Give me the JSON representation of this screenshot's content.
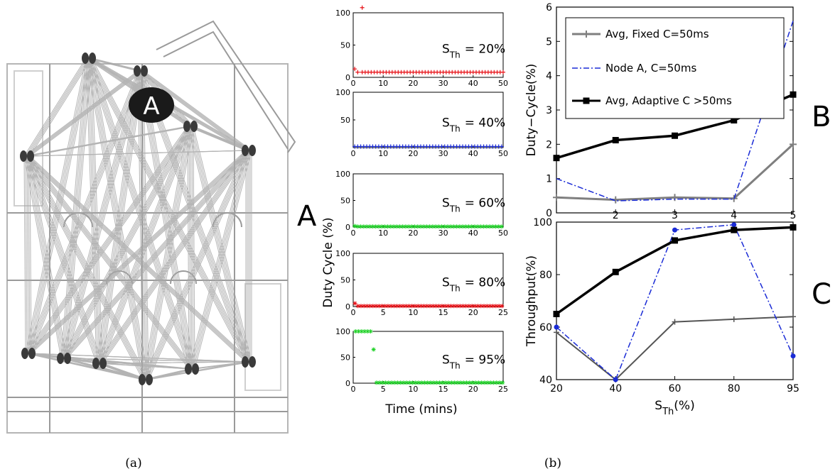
{
  "captions": {
    "left": "(a)",
    "right": "(b)"
  },
  "map": {
    "node_label": "A"
  },
  "panel_letters": {
    "a": "A",
    "b": "B",
    "c": "C"
  },
  "duty_panels": {
    "ylabel": "Duty Cycle (%)",
    "xlabel": "Time (mins)",
    "annotation_prefix": "S",
    "annotation_sub": "Th"
  },
  "colors": {
    "red": "#e8141a",
    "blue": "#1a2bd6",
    "green": "#22d22a",
    "gray": "#7f7f7f",
    "black": "#000000",
    "dark_gray": "#555555"
  },
  "chart_data": [
    {
      "type": "scatter",
      "panel": "duty-20",
      "annotation": "= 20%",
      "color": "#e8141a",
      "marker": "+",
      "xlim": [
        0,
        50
      ],
      "ylim": [
        0,
        100
      ],
      "xticks": [
        0,
        10,
        20,
        30,
        40,
        50
      ],
      "yticks": [
        0,
        50,
        100
      ],
      "points": [
        [
          3,
          108
        ],
        [
          0.5,
          13
        ],
        [
          1.5,
          8
        ],
        [
          3,
          8
        ],
        [
          4,
          8
        ],
        [
          5,
          8
        ],
        [
          6,
          8
        ],
        [
          7,
          8
        ],
        [
          8,
          8
        ],
        [
          9,
          8
        ],
        [
          10,
          8
        ],
        [
          11,
          8
        ],
        [
          12,
          8
        ],
        [
          13,
          8
        ],
        [
          14,
          8
        ],
        [
          15,
          8
        ],
        [
          16,
          8
        ],
        [
          17,
          8
        ],
        [
          18,
          8
        ],
        [
          19,
          8
        ],
        [
          20,
          8
        ],
        [
          21,
          8
        ],
        [
          22,
          8
        ],
        [
          23,
          8
        ],
        [
          24,
          8
        ],
        [
          25,
          8
        ],
        [
          26,
          8
        ],
        [
          27,
          8
        ],
        [
          28,
          8
        ],
        [
          29,
          8
        ],
        [
          30,
          8
        ],
        [
          31,
          8
        ],
        [
          32,
          8
        ],
        [
          33,
          8
        ],
        [
          34,
          8
        ],
        [
          35,
          8
        ],
        [
          36,
          8
        ],
        [
          37,
          8
        ],
        [
          38,
          8
        ],
        [
          39,
          8
        ],
        [
          40,
          8
        ],
        [
          41,
          8
        ],
        [
          42,
          8
        ],
        [
          43,
          8
        ],
        [
          44,
          8
        ],
        [
          45,
          8
        ],
        [
          46,
          8
        ],
        [
          47,
          8
        ],
        [
          48,
          8
        ],
        [
          49,
          8
        ],
        [
          50,
          8
        ]
      ]
    },
    {
      "type": "scatter",
      "panel": "duty-40",
      "annotation": "= 40%",
      "color": "#1a2bd6",
      "marker": "+",
      "xlim": [
        0,
        50
      ],
      "ylim": [
        0,
        100
      ],
      "xticks": [
        0,
        10,
        20,
        30,
        40,
        50
      ],
      "yticks": [
        50,
        100
      ],
      "points": [
        [
          0.5,
          2
        ],
        [
          1.5,
          2
        ],
        [
          2.5,
          2
        ],
        [
          3.5,
          2
        ],
        [
          4.5,
          2
        ],
        [
          5.5,
          2
        ],
        [
          6.5,
          2
        ],
        [
          7.5,
          2
        ],
        [
          8.5,
          2
        ],
        [
          9.5,
          2
        ],
        [
          10.5,
          2
        ],
        [
          11.5,
          2
        ],
        [
          12.5,
          2
        ],
        [
          13.5,
          2
        ],
        [
          14.5,
          2
        ],
        [
          15.5,
          2
        ],
        [
          16.5,
          2
        ],
        [
          17.5,
          2
        ],
        [
          18.5,
          2
        ],
        [
          19.5,
          2
        ],
        [
          20.5,
          2
        ],
        [
          21.5,
          2
        ],
        [
          22.5,
          2
        ],
        [
          23.5,
          2
        ],
        [
          24.5,
          2
        ],
        [
          25.5,
          2
        ],
        [
          26.5,
          2
        ],
        [
          27.5,
          2
        ],
        [
          28.5,
          2
        ],
        [
          29.5,
          2
        ],
        [
          30.5,
          2
        ],
        [
          31.5,
          2
        ],
        [
          32.5,
          2
        ],
        [
          33.5,
          2
        ],
        [
          34.5,
          2
        ],
        [
          35.5,
          2
        ],
        [
          36.5,
          2
        ],
        [
          37.5,
          2
        ],
        [
          38.5,
          2
        ],
        [
          39.5,
          2
        ],
        [
          40.5,
          2
        ],
        [
          41.5,
          2
        ],
        [
          42.5,
          2
        ],
        [
          43.5,
          2
        ],
        [
          44.5,
          2
        ],
        [
          45.5,
          2
        ],
        [
          46.5,
          2
        ],
        [
          47.5,
          2
        ],
        [
          48.5,
          2
        ],
        [
          49.5,
          2
        ]
      ]
    },
    {
      "type": "scatter",
      "panel": "duty-60",
      "annotation": "= 60%",
      "color": "#22d22a",
      "marker": "*",
      "xlim": [
        0,
        50
      ],
      "ylim": [
        0,
        100
      ],
      "xticks": [
        0,
        10,
        20,
        30,
        40,
        50
      ],
      "yticks": [
        0,
        50,
        100
      ],
      "points": [
        [
          0.5,
          2
        ],
        [
          1.5,
          1
        ],
        [
          2.5,
          1
        ],
        [
          3.5,
          1
        ],
        [
          4.5,
          1
        ],
        [
          5.5,
          1
        ],
        [
          6.5,
          1
        ],
        [
          7.5,
          1
        ],
        [
          8.5,
          1
        ],
        [
          9.5,
          1
        ],
        [
          10.5,
          1
        ],
        [
          11.5,
          1
        ],
        [
          12.5,
          1
        ],
        [
          13.5,
          1
        ],
        [
          14.5,
          1
        ],
        [
          15.5,
          1
        ],
        [
          16.5,
          1
        ],
        [
          17.5,
          1
        ],
        [
          18.5,
          1
        ],
        [
          19.5,
          1
        ],
        [
          20.5,
          1
        ],
        [
          21.5,
          1
        ],
        [
          22.5,
          1
        ],
        [
          23.5,
          1
        ],
        [
          24.5,
          1
        ],
        [
          25.5,
          1
        ],
        [
          26.5,
          1
        ],
        [
          27.5,
          1
        ],
        [
          28.5,
          1
        ],
        [
          29.5,
          1
        ],
        [
          30.5,
          1
        ],
        [
          31.5,
          1
        ],
        [
          32.5,
          1
        ],
        [
          33.5,
          1
        ],
        [
          34.5,
          1
        ],
        [
          35.5,
          1
        ],
        [
          36.5,
          1
        ],
        [
          37.5,
          1
        ],
        [
          38.5,
          1
        ],
        [
          39.5,
          1
        ],
        [
          40.5,
          1
        ],
        [
          41.5,
          1
        ],
        [
          42.5,
          1
        ],
        [
          43.5,
          1
        ],
        [
          44.5,
          1
        ],
        [
          45.5,
          1
        ],
        [
          46.5,
          1
        ],
        [
          47.5,
          1
        ],
        [
          48.5,
          1
        ],
        [
          49.5,
          1
        ]
      ]
    },
    {
      "type": "scatter",
      "panel": "duty-80",
      "annotation": "= 80%",
      "color": "#e8141a",
      "marker": "*",
      "xlim": [
        0,
        25
      ],
      "ylim": [
        0,
        100
      ],
      "xticks": [
        0,
        5,
        10,
        15,
        20,
        25
      ],
      "yticks": [
        0,
        50,
        100
      ],
      "points": [
        [
          0.3,
          6
        ],
        [
          0.8,
          1
        ],
        [
          1.3,
          1
        ],
        [
          1.8,
          1
        ],
        [
          2.3,
          1
        ],
        [
          2.8,
          1
        ],
        [
          3.3,
          1
        ],
        [
          3.8,
          1
        ],
        [
          4.3,
          1
        ],
        [
          4.8,
          1
        ],
        [
          5.3,
          1
        ],
        [
          5.8,
          1
        ],
        [
          6.3,
          1
        ],
        [
          6.8,
          1
        ],
        [
          7.3,
          1
        ],
        [
          7.8,
          1
        ],
        [
          8.3,
          1
        ],
        [
          8.8,
          1
        ],
        [
          9.3,
          1
        ],
        [
          9.8,
          1
        ],
        [
          10.3,
          1
        ],
        [
          10.8,
          1
        ],
        [
          11.3,
          1
        ],
        [
          11.8,
          1
        ],
        [
          12.3,
          1
        ],
        [
          12.8,
          1
        ],
        [
          13.3,
          1
        ],
        [
          13.8,
          1
        ],
        [
          14.3,
          1
        ],
        [
          14.8,
          1
        ],
        [
          15.3,
          1
        ],
        [
          15.8,
          1
        ],
        [
          16.3,
          1
        ],
        [
          16.8,
          1
        ],
        [
          17.3,
          1
        ],
        [
          17.8,
          1
        ],
        [
          18.3,
          1
        ],
        [
          18.8,
          1
        ],
        [
          19.3,
          1
        ],
        [
          19.8,
          1
        ],
        [
          20.3,
          1
        ],
        [
          20.8,
          1
        ],
        [
          21.3,
          1
        ],
        [
          21.8,
          1
        ],
        [
          22.3,
          1
        ],
        [
          22.8,
          1
        ],
        [
          23.3,
          1
        ],
        [
          23.8,
          1
        ],
        [
          24.3,
          1
        ],
        [
          24.8,
          1
        ]
      ]
    },
    {
      "type": "scatter",
      "panel": "duty-95",
      "annotation": "= 95%",
      "color": "#22d22a",
      "marker": "*",
      "xlim": [
        0,
        25
      ],
      "ylim": [
        0,
        100
      ],
      "xticks": [
        0,
        5,
        10,
        15,
        20,
        25
      ],
      "yticks": [
        0,
        50,
        100
      ],
      "points": [
        [
          0.4,
          100
        ],
        [
          0.9,
          100
        ],
        [
          1.4,
          100
        ],
        [
          1.9,
          100
        ],
        [
          2.4,
          100
        ],
        [
          2.9,
          100
        ],
        [
          3.4,
          65
        ],
        [
          3.9,
          1
        ],
        [
          4.4,
          1
        ],
        [
          4.9,
          1
        ],
        [
          5.4,
          1
        ],
        [
          5.9,
          1
        ],
        [
          6.4,
          1
        ],
        [
          6.9,
          1
        ],
        [
          7.4,
          1
        ],
        [
          7.9,
          1
        ],
        [
          8.4,
          1
        ],
        [
          8.9,
          1
        ],
        [
          9.4,
          1
        ],
        [
          9.9,
          1
        ],
        [
          10.4,
          1
        ],
        [
          10.9,
          1
        ],
        [
          11.4,
          1
        ],
        [
          11.9,
          1
        ],
        [
          12.4,
          1
        ],
        [
          12.9,
          1
        ],
        [
          13.4,
          1
        ],
        [
          13.9,
          1
        ],
        [
          14.4,
          1
        ],
        [
          14.9,
          1
        ],
        [
          15.4,
          1
        ],
        [
          15.9,
          1
        ],
        [
          16.4,
          1
        ],
        [
          16.9,
          1
        ],
        [
          17.4,
          1
        ],
        [
          17.9,
          1
        ],
        [
          18.4,
          1
        ],
        [
          18.9,
          1
        ],
        [
          19.4,
          1
        ],
        [
          19.9,
          1
        ],
        [
          20.4,
          1
        ],
        [
          20.9,
          1
        ],
        [
          21.4,
          1
        ],
        [
          21.9,
          1
        ],
        [
          22.4,
          1
        ],
        [
          22.9,
          1
        ],
        [
          23.4,
          1
        ],
        [
          23.9,
          1
        ],
        [
          24.4,
          1
        ],
        [
          24.9,
          1
        ]
      ]
    },
    {
      "type": "line",
      "panel": "B",
      "ylabel": "Duty−Cycle(%)",
      "x_positions": [
        1,
        2,
        3,
        4,
        5
      ],
      "xlim": [
        1,
        5
      ],
      "ylim": [
        0,
        6
      ],
      "yticks": [
        0,
        1,
        2,
        3,
        4,
        5,
        6
      ],
      "xtick_labels": [
        "",
        "2",
        "3",
        "4",
        "5"
      ],
      "series": [
        {
          "name": "Avg, Fixed C=50ms",
          "color": "#7f7f7f",
          "style": "solid",
          "marker": "+",
          "values": [
            0.45,
            0.38,
            0.45,
            0.42,
            2.0
          ]
        },
        {
          "name": "Node A, C=50ms",
          "color": "#1a2bd6",
          "style": "dashdot",
          "marker": "none",
          "values": [
            1.0,
            0.35,
            0.4,
            0.4,
            5.6
          ]
        },
        {
          "name": "Avg, Adaptive C >50ms",
          "color": "#000000",
          "style": "solid",
          "marker": "square",
          "values": [
            1.6,
            2.12,
            2.25,
            2.7,
            3.45
          ]
        }
      ]
    },
    {
      "type": "line",
      "panel": "C",
      "ylabel": "Throughput(%)",
      "xlabel": "S",
      "xlabel_sub": "Th",
      "xlabel_suffix": "(%)",
      "categories": [
        "20",
        "40",
        "60",
        "80",
        "95"
      ],
      "ylim": [
        40,
        100
      ],
      "yticks": [
        40,
        60,
        80,
        100
      ],
      "series": [
        {
          "color": "#555555",
          "style": "solid",
          "marker": "+",
          "values": [
            58,
            40,
            62,
            63,
            64
          ]
        },
        {
          "color": "#1a2bd6",
          "style": "dashdot",
          "marker": "dot",
          "values": [
            60,
            40,
            97,
            99,
            49
          ]
        },
        {
          "color": "#000000",
          "style": "solid",
          "marker": "square",
          "values": [
            65,
            81,
            93,
            97,
            98
          ]
        }
      ]
    }
  ]
}
